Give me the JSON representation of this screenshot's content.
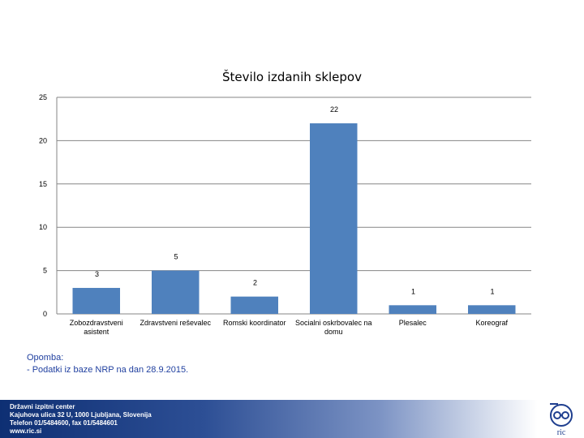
{
  "chart_data": {
    "type": "bar",
    "title": "Število izdanih sklepov",
    "categories": [
      "Zobozdravstveni asistent",
      "Zdravstveni reševalec",
      "Romski koordinator",
      "Socialni oskrbovalec na domu",
      "Plesalec",
      "Koreograf"
    ],
    "category_lines": [
      [
        "Zobozdravstveni",
        "asistent"
      ],
      [
        "Zdravstveni reševalec"
      ],
      [
        "Romski koordinator"
      ],
      [
        "Socialni oskrbovalec na",
        "domu"
      ],
      [
        "Plesalec"
      ],
      [
        "Koreograf"
      ]
    ],
    "values": [
      3,
      5,
      2,
      22,
      1,
      1
    ],
    "yticks": [
      0,
      5,
      10,
      15,
      20,
      25
    ],
    "ylim": [
      0,
      25
    ],
    "grid": true,
    "bar_color": "#4f81bd"
  },
  "note": {
    "line1": "Opomba:",
    "line2": "- Podatki iz baze NRP na dan 28.9.2015."
  },
  "footer": {
    "line1": "Državni izpitni center",
    "line2": "Kajuhova ulica 32 U, 1000 Ljubljana, Slovenija",
    "line3": "Telefon 01/5484600, fax 01/5484601",
    "line4": "www.ric.si",
    "logo_text": "ric",
    "logo_icon": "ric-logo-icon"
  }
}
